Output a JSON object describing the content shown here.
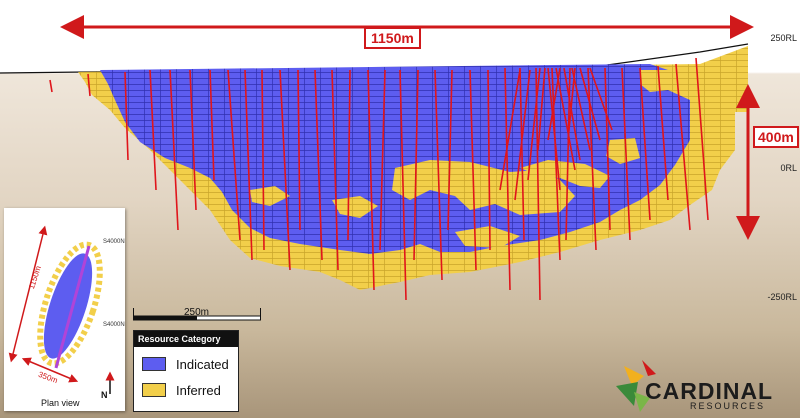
{
  "section": {
    "width_label": "1150m",
    "depth_label": "400m",
    "rl_labels": [
      "250RL",
      "0RL",
      "-250RL"
    ]
  },
  "scale_bar": {
    "label": "250m"
  },
  "legend": {
    "title": "Resource Category",
    "items": [
      {
        "label": "Indicated",
        "color": "#5d5df0"
      },
      {
        "label": "Inferred",
        "color": "#f2cf4a"
      }
    ]
  },
  "plan_view": {
    "title": "Plan view",
    "north": "N",
    "length_label": "1150m",
    "width_label": "350m",
    "northing_labels": [
      "S4000N",
      "S4000N"
    ]
  },
  "logo": {
    "name": "CARDINAL",
    "sub": "RESOURCES"
  },
  "colors": {
    "arrow": "#d0191b",
    "indicated": "#5d5df0",
    "inferred": "#f2cf4a",
    "drillhole": "#e0151b"
  }
}
